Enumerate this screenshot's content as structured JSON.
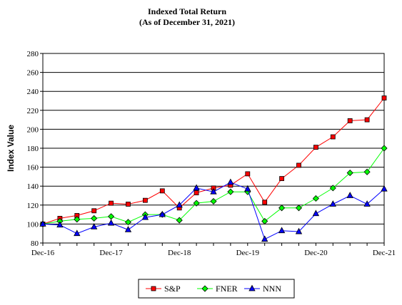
{
  "chart_data": {
    "type": "line",
    "title": "Indexed Total Return",
    "subtitle": "(As of December 31, 2021)",
    "xlabel": "",
    "ylabel": "Index Value",
    "ylim": [
      80,
      280
    ],
    "yticks": [
      80,
      100,
      120,
      140,
      160,
      180,
      200,
      220,
      240,
      260,
      280
    ],
    "xticks": [
      "Dec-16",
      "Dec-17",
      "Dec-18",
      "Dec-19",
      "Dec-20",
      "Dec-21"
    ],
    "grid": "horizontal",
    "legend_position": "bottom",
    "x_count": 21,
    "series": [
      {
        "name": "S&P",
        "color": "#ff0000",
        "marker": "square",
        "marker_fill": "#ff0000",
        "values": [
          100,
          106,
          109,
          114,
          122,
          121,
          125,
          135,
          117,
          133,
          138,
          141,
          153,
          123,
          148,
          162,
          181,
          192,
          209,
          210,
          233
        ]
      },
      {
        "name": "FNER",
        "color": "#00ff00",
        "marker": "diamond",
        "marker_fill": "#00ff00",
        "values": [
          100,
          103,
          105,
          106,
          108,
          102,
          110,
          110,
          104,
          122,
          124,
          134,
          134,
          103,
          117,
          117,
          127,
          138,
          154,
          155,
          180
        ]
      },
      {
        "name": "NNN",
        "color": "#0000ff",
        "marker": "triangle",
        "marker_fill": "#0000ff",
        "values": [
          100,
          99,
          90,
          97,
          101,
          94,
          107,
          110,
          120,
          138,
          134,
          144,
          137,
          84,
          93,
          92,
          111,
          121,
          130,
          121,
          137
        ]
      }
    ]
  }
}
